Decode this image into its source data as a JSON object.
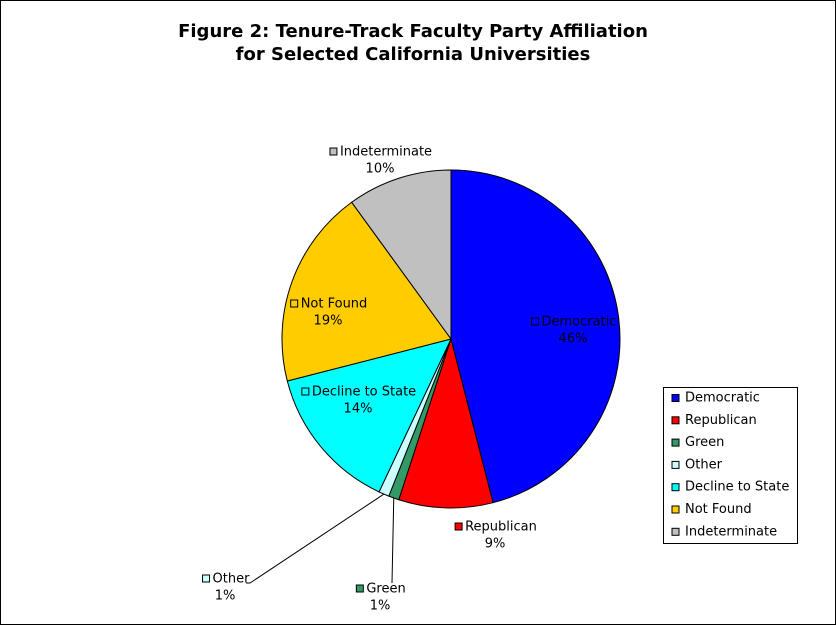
{
  "chart_data": {
    "type": "pie",
    "title": "Figure 2: Tenure-Track Faculty Party Affiliation",
    "subtitle": "for Selected California Universities",
    "categories": [
      "Democratic",
      "Republican",
      "Green",
      "Other",
      "Decline to State",
      "Not Found",
      "Indeterminate"
    ],
    "values": [
      46,
      9,
      1,
      1,
      14,
      19,
      10
    ],
    "value_labels": [
      "46%",
      "9%",
      "1%",
      "1%",
      "14%",
      "19%",
      "10%"
    ],
    "colors": [
      "#0000ff",
      "#ff0000",
      "#339966",
      "#ccffff",
      "#00ffff",
      "#ffcc00",
      "#c0c0c0"
    ],
    "legend": "right"
  }
}
